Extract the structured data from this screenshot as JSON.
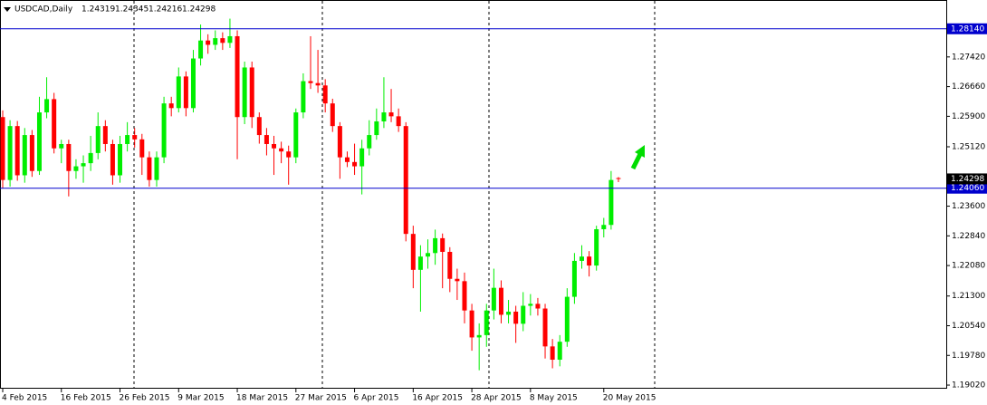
{
  "chart_data": {
    "type": "candlestick",
    "title": "USDCAD,Daily",
    "up_color": "#00ee00",
    "down_color": "#ff0000",
    "level_color": "#0000cd",
    "ylim": [
      1.18928,
      1.28877
    ],
    "yticks": [
      {
        "value": 1.2742,
        "label": "1.27420"
      },
      {
        "value": 1.2666,
        "label": "1.26660"
      },
      {
        "value": 1.259,
        "label": "1.25900"
      },
      {
        "value": 1.2512,
        "label": "1.25120"
      },
      {
        "value": 1.236,
        "label": "1.23600"
      },
      {
        "value": 1.2284,
        "label": "1.22840"
      },
      {
        "value": 1.2208,
        "label": "1.22080"
      },
      {
        "value": 1.213,
        "label": "1.21300"
      },
      {
        "value": 1.2054,
        "label": "1.20540"
      },
      {
        "value": 1.1978,
        "label": "1.19780"
      },
      {
        "value": 1.1902,
        "label": "1.19020"
      }
    ],
    "levels": [
      {
        "value": 1.2814,
        "label": "1.28140"
      },
      {
        "value": 1.2406,
        "label": "1.24060"
      }
    ],
    "categories": [
      "4 Feb 2015",
      null,
      null,
      null,
      null,
      null,
      null,
      null,
      "16 Feb 2015",
      null,
      null,
      null,
      null,
      null,
      null,
      null,
      "26 Feb 2015",
      null,
      null,
      null,
      null,
      null,
      null,
      null,
      "9 Mar 2015",
      null,
      null,
      null,
      null,
      null,
      null,
      null,
      "18 Mar 2015",
      null,
      null,
      null,
      null,
      null,
      null,
      null,
      "27 Mar 2015",
      null,
      null,
      null,
      null,
      null,
      null,
      null,
      "6 Apr 2015",
      null,
      null,
      null,
      null,
      null,
      null,
      null,
      "16 Apr 2015",
      null,
      null,
      null,
      null,
      null,
      null,
      null,
      "28 Apr 2015",
      null,
      null,
      null,
      null,
      null,
      null,
      null,
      "8 May 2015",
      null,
      null,
      null,
      null,
      null,
      null,
      null,
      null,
      null,
      "20 May 2015",
      null,
      null
    ],
    "open": [
      1.2588,
      1.2427,
      1.2565,
      1.2439,
      1.2542,
      1.245,
      1.26,
      1.2634,
      1.2508,
      1.2519,
      1.245,
      1.2462,
      1.247,
      1.2496,
      1.2565,
      1.2519,
      1.2439,
      1.2519,
      1.2542,
      1.2531,
      1.2485,
      1.2427,
      1.2485,
      1.2623,
      1.2611,
      1.2692,
      1.2611,
      1.2738,
      1.2784,
      1.2773,
      1.279,
      1.2778,
      1.2795,
      1.2588,
      1.2715,
      1.2588,
      1.2542,
      1.2519,
      1.2508,
      1.25,
      1.2485,
      1.26,
      1.268,
      1.2675,
      1.2669,
      1.2623,
      1.2565,
      1.2485,
      1.2473,
      1.2462,
      1.2508,
      1.2542,
      1.2577,
      1.26,
      1.259,
      1.2565,
      1.2289,
      1.2197,
      1.2231,
      1.224,
      1.2278,
      1.2243,
      1.2174,
      1.2168,
      1.2093,
      1.2024,
      1.203,
      1.2093,
      1.2151,
      1.2082,
      1.209,
      1.2059,
      1.2105,
      1.211,
      1.2098,
      1.2001,
      1.1967,
      1.2013,
      1.2128,
      1.222,
      1.2231,
      1.2208,
      1.2301,
      1.2312,
      1.24319
    ],
    "high": [
      1.2605,
      1.258,
      1.2578,
      1.256,
      1.2555,
      1.264,
      1.269,
      1.265,
      1.253,
      1.253,
      1.248,
      1.249,
      1.254,
      1.26,
      1.258,
      1.253,
      1.254,
      1.2575,
      1.256,
      1.2545,
      1.25,
      1.25,
      1.264,
      1.264,
      1.2715,
      1.2705,
      1.276,
      1.2825,
      1.28,
      1.281,
      1.2805,
      1.284,
      1.281,
      1.273,
      1.273,
      1.26,
      1.256,
      1.254,
      1.2525,
      1.2515,
      1.261,
      1.27,
      1.2795,
      1.276,
      1.2685,
      1.2635,
      1.2575,
      1.25,
      1.252,
      1.253,
      1.258,
      1.261,
      1.269,
      1.266,
      1.261,
      1.2575,
      1.231,
      1.226,
      1.2275,
      1.23,
      1.229,
      1.2255,
      1.22,
      1.219,
      1.211,
      1.206,
      1.211,
      1.22,
      1.217,
      1.212,
      1.2105,
      1.214,
      1.2135,
      1.2125,
      1.211,
      1.202,
      1.203,
      1.215,
      1.224,
      1.226,
      1.2245,
      1.231,
      1.233,
      1.245,
      1.24345
    ],
    "low": [
      1.2405,
      1.241,
      1.2425,
      1.242,
      1.2435,
      1.244,
      1.2585,
      1.2495,
      1.247,
      1.2385,
      1.243,
      1.242,
      1.245,
      1.248,
      1.25,
      1.2415,
      1.242,
      1.25,
      1.251,
      1.244,
      1.241,
      1.241,
      1.247,
      1.259,
      1.26,
      1.259,
      1.26,
      1.272,
      1.275,
      1.276,
      1.276,
      1.2765,
      1.248,
      1.257,
      1.256,
      1.252,
      1.249,
      1.244,
      1.247,
      1.2415,
      1.247,
      1.2585,
      1.266,
      1.265,
      1.26,
      1.255,
      1.243,
      1.246,
      1.244,
      1.239,
      1.249,
      1.253,
      1.256,
      1.2575,
      1.255,
      1.227,
      1.215,
      1.209,
      1.22,
      1.221,
      1.215,
      1.214,
      1.212,
      1.206,
      1.199,
      1.194,
      1.2,
      1.207,
      1.206,
      1.206,
      1.201,
      1.204,
      1.208,
      1.208,
      1.197,
      1.1945,
      1.195,
      1.2,
      1.211,
      1.22,
      1.218,
      1.2195,
      1.228,
      1.23,
      1.24216
    ],
    "close": [
      1.2427,
      1.2565,
      1.2439,
      1.2542,
      1.245,
      1.26,
      1.2634,
      1.2508,
      1.2519,
      1.245,
      1.2462,
      1.247,
      1.2496,
      1.2565,
      1.2519,
      1.2439,
      1.2519,
      1.2542,
      1.2531,
      1.2485,
      1.2427,
      1.2485,
      1.2623,
      1.2611,
      1.2692,
      1.2611,
      1.2738,
      1.2784,
      1.2773,
      1.279,
      1.2778,
      1.2795,
      1.2588,
      1.2715,
      1.2588,
      1.2542,
      1.2519,
      1.2508,
      1.25,
      1.2485,
      1.26,
      1.268,
      1.2675,
      1.2669,
      1.2623,
      1.2565,
      1.2485,
      1.2473,
      1.2462,
      1.2508,
      1.2542,
      1.2577,
      1.26,
      1.259,
      1.2565,
      1.2289,
      1.2197,
      1.2231,
      1.224,
      1.2278,
      1.2243,
      1.2174,
      1.2168,
      1.2093,
      1.2024,
      1.203,
      1.2093,
      1.2151,
      1.2082,
      1.209,
      1.2059,
      1.2105,
      1.211,
      1.2098,
      1.2001,
      1.1967,
      1.2013,
      1.2128,
      1.222,
      1.2231,
      1.2208,
      1.2301,
      1.2312,
      1.2427,
      1.24298
    ]
  }
}
